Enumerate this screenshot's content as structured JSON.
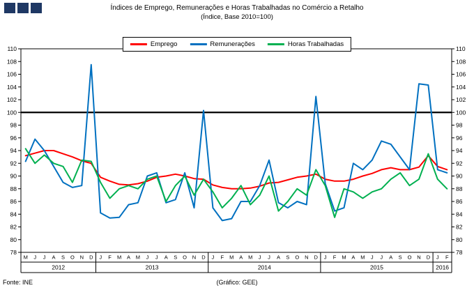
{
  "footer": {
    "source": "Fonte: INE",
    "credit": "(Gráfico: GEE)"
  },
  "chart_data": {
    "type": "line",
    "title": "Índices de Emprego, Remunerações e Horas Trabalhadas no Comércio a Retalho",
    "subtitle": "(Índice, Base 2010=100)",
    "ylim": [
      78,
      110
    ],
    "ytick_step": 2,
    "reference_line": 100,
    "grid": "off",
    "legend_position": "top-center",
    "colors": {
      "emprego": "#FF0000",
      "remuneracoes": "#0070C0",
      "horas_trabalhadas": "#00B050",
      "reference": "#000000",
      "logo": "#1F3864"
    },
    "x_months": [
      "M",
      "J",
      "J",
      "A",
      "S",
      "O",
      "N",
      "D",
      "J",
      "F",
      "M",
      "A",
      "M",
      "J",
      "J",
      "A",
      "S",
      "O",
      "N",
      "D",
      "J",
      "F",
      "M",
      "A",
      "M",
      "J",
      "J",
      "A",
      "S",
      "O",
      "N",
      "D",
      "J",
      "F",
      "M",
      "A",
      "M",
      "J",
      "J",
      "A",
      "S",
      "O",
      "N",
      "D",
      "J",
      "F"
    ],
    "year_groups": [
      {
        "label": "2012",
        "count": 8
      },
      {
        "label": "2013",
        "count": 12
      },
      {
        "label": "2014",
        "count": 12
      },
      {
        "label": "2015",
        "count": 12
      },
      {
        "label": "2016",
        "count": 2
      }
    ],
    "series": [
      {
        "name": "Emprego",
        "key": "emprego",
        "color": "#FF0000",
        "values": [
          93.2,
          93.6,
          94.0,
          94.0,
          93.5,
          93.0,
          92.4,
          92.0,
          89.8,
          89.2,
          88.7,
          88.6,
          88.8,
          89.2,
          89.8,
          90.0,
          90.3,
          90.0,
          89.6,
          89.5,
          88.6,
          88.2,
          88.0,
          88.0,
          88.1,
          88.4,
          88.9,
          89.0,
          89.4,
          89.8,
          90.0,
          90.3,
          89.5,
          89.2,
          89.2,
          89.5,
          90.0,
          90.4,
          91.0,
          91.3,
          91.0,
          91.0,
          91.4,
          93.2,
          91.5,
          91.0
        ]
      },
      {
        "name": "Remunerações",
        "key": "remuneracoes",
        "color": "#0070C0",
        "values": [
          92.3,
          95.8,
          94.0,
          91.5,
          89.0,
          88.2,
          88.5,
          107.5,
          84.2,
          83.4,
          83.5,
          85.5,
          85.8,
          90.0,
          90.5,
          85.8,
          86.3,
          90.5,
          85.0,
          100.3,
          85.0,
          83.0,
          83.3,
          86.0,
          86.0,
          88.5,
          92.5,
          85.8,
          85.0,
          86.0,
          85.5,
          102.5,
          88.8,
          84.5,
          85.0,
          92.0,
          91.0,
          92.5,
          95.5,
          95.0,
          93.0,
          91.0,
          104.5,
          104.3,
          91.0,
          90.5
        ]
      },
      {
        "name": "Horas Trabalhadas",
        "key": "horas-trabalhadas",
        "color": "#00B050",
        "values": [
          94.3,
          92.0,
          93.3,
          92.0,
          91.5,
          89.0,
          92.5,
          92.3,
          89.0,
          86.5,
          88.0,
          88.5,
          88.0,
          89.5,
          90.0,
          86.0,
          88.5,
          90.0,
          87.0,
          89.5,
          87.5,
          85.0,
          86.5,
          88.5,
          85.5,
          87.0,
          90.0,
          84.5,
          86.0,
          88.0,
          87.0,
          91.0,
          88.5,
          83.5,
          88.0,
          87.5,
          86.5,
          87.5,
          88.0,
          89.5,
          90.5,
          88.5,
          89.5,
          93.5,
          89.5,
          88.0
        ]
      }
    ]
  }
}
